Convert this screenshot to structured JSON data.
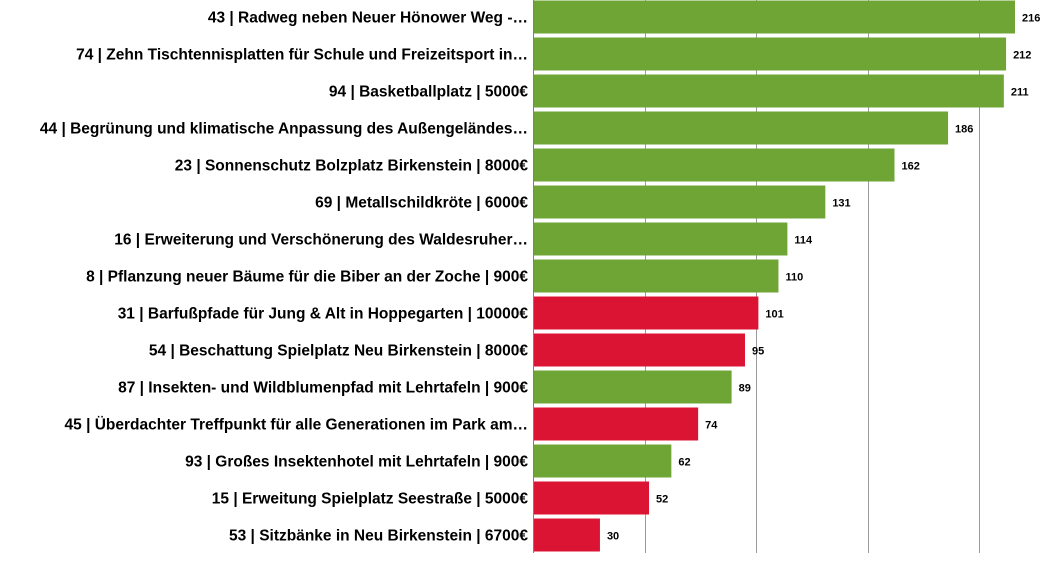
{
  "chart_data": {
    "type": "bar",
    "orientation": "horizontal",
    "title": "",
    "xlabel": "",
    "ylabel": "",
    "xlim": [
      0,
      230
    ],
    "grid": true,
    "legend": "none",
    "colors": {
      "green": "#6fa534",
      "red": "#dc1433",
      "grid": "#9a9a9a",
      "axis": "#7f7f7f"
    },
    "bars": [
      {
        "label": "43 | Radweg neben Neuer Hönower Weg -…",
        "value": 216,
        "color": "green"
      },
      {
        "label": "74 | Zehn Tischtennisplatten für Schule und Freizeitsport in…",
        "value": 212,
        "color": "green"
      },
      {
        "label": "94 | Basketballplatz | 5000€",
        "value": 211,
        "color": "green"
      },
      {
        "label": "44 | Begrünung und klimatische Anpassung des Außengeländes…",
        "value": 186,
        "color": "green"
      },
      {
        "label": "23 | Sonnenschutz Bolzplatz Birkenstein | 8000€",
        "value": 162,
        "color": "green"
      },
      {
        "label": "69 | Metallschildkröte | 6000€",
        "value": 131,
        "color": "green"
      },
      {
        "label": "16 | Erweiterung und Verschönerung des Waldesruher…",
        "value": 114,
        "color": "green"
      },
      {
        "label": "8 | Pflanzung neuer Bäume für die Biber an der Zoche | 900€",
        "value": 110,
        "color": "green"
      },
      {
        "label": "31 | Barfußpfade für Jung & Alt in Hoppegarten | 10000€",
        "value": 101,
        "color": "red"
      },
      {
        "label": "54 | Beschattung Spielplatz Neu Birkenstein  | 8000€",
        "value": 95,
        "color": "red"
      },
      {
        "label": "87 | Insekten- und Wildblumenpfad mit Lehrtafeln | 900€",
        "value": 89,
        "color": "green"
      },
      {
        "label": "45 | Überdachter Treffpunkt für alle Generationen im Park am…",
        "value": 74,
        "color": "red"
      },
      {
        "label": "93 | Großes Insektenhotel mit Lehrtafeln | 900€",
        "value": 62,
        "color": "green"
      },
      {
        "label": "15 | Erweitung Spielplatz Seestraße  | 5000€",
        "value": 52,
        "color": "red"
      },
      {
        "label": "53 | Sitzbänke in Neu Birkenstein  | 6700€",
        "value": 30,
        "color": "red"
      }
    ]
  }
}
